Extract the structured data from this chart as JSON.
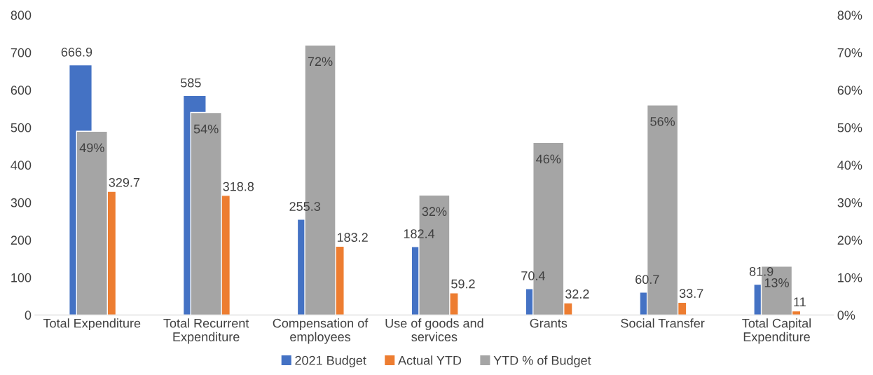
{
  "chart_data": {
    "type": "bar",
    "categories": [
      "Total Expenditure",
      "Total Recurrent\nExpenditure",
      "Compensation of\nemployees",
      "Use of goods and\nservices",
      "Grants",
      "Social Transfer",
      "Total Capital\nExpenditure"
    ],
    "series": [
      {
        "name": "2021 Budget",
        "color": "#4472c4",
        "values": [
          666.9,
          585,
          255.3,
          182.4,
          70.4,
          60.7,
          81.9
        ]
      },
      {
        "name": "Actual YTD",
        "color": "#ed7d31",
        "values": [
          329.7,
          318.8,
          183.2,
          59.2,
          32.2,
          33.7,
          11
        ]
      },
      {
        "name": "YTD % of Budget",
        "color": "#a5a5a5",
        "axis": "y2",
        "values": [
          49,
          54,
          72,
          32,
          46,
          56,
          13
        ],
        "value_labels": [
          "49%",
          "54%",
          "72%",
          "32%",
          "46%",
          "56%",
          "13%"
        ]
      }
    ],
    "data_labels": true,
    "ylim": [
      0,
      800
    ],
    "yticks": [
      0,
      100,
      200,
      300,
      400,
      500,
      600,
      700,
      800
    ],
    "y2lim": [
      0,
      80
    ],
    "y2ticks": [
      {
        "value": 0,
        "label": "0%"
      },
      {
        "value": 10,
        "label": "10%"
      },
      {
        "value": 20,
        "label": "20%"
      },
      {
        "value": 30,
        "label": "30%"
      },
      {
        "value": 40,
        "label": "40%"
      },
      {
        "value": 50,
        "label": "50%"
      },
      {
        "value": 60,
        "label": "60%"
      },
      {
        "value": 70,
        "label": "70%"
      },
      {
        "value": 80,
        "label": "80%"
      }
    ],
    "grid": false,
    "legend": "bottom"
  }
}
